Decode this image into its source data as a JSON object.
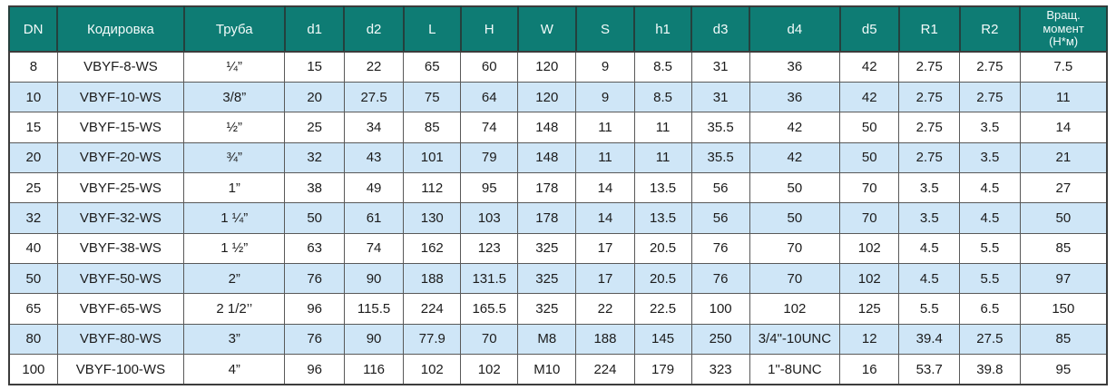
{
  "colors": {
    "header_bg": "#0E7C74",
    "header_text": "#F3FBFA",
    "header_divider": "#24403D",
    "outer_border": "#3C3C3C",
    "grid_line": "#595959",
    "row_bg": "#FFFFFF",
    "row_alt_bg": "#CFE6F7",
    "body_text": "#1C1C1C"
  },
  "table": {
    "columns": [
      {
        "key": "dn",
        "label": "DN",
        "width": 4.4
      },
      {
        "key": "kodirovka",
        "label": "Кодировка",
        "width": 11.5
      },
      {
        "key": "truba",
        "label": "Труба",
        "width": 9.2
      },
      {
        "key": "d1",
        "label": "d1",
        "width": 5.4
      },
      {
        "key": "d2",
        "label": "d2",
        "width": 5.4
      },
      {
        "key": "L",
        "label": "L",
        "width": 5.2
      },
      {
        "key": "H",
        "label": "H",
        "width": 5.2
      },
      {
        "key": "W",
        "label": "W",
        "width": 5.3
      },
      {
        "key": "S",
        "label": "S",
        "width": 5.3
      },
      {
        "key": "h1",
        "label": "h1",
        "width": 5.2
      },
      {
        "key": "d3",
        "label": "d3",
        "width": 5.3
      },
      {
        "key": "d4",
        "label": "d4",
        "width": 8.2
      },
      {
        "key": "d5",
        "label": "d5",
        "width": 5.4
      },
      {
        "key": "R1",
        "label": "R1",
        "width": 5.5
      },
      {
        "key": "R2",
        "label": "R2",
        "width": 5.5
      },
      {
        "key": "torque",
        "label": "Вращ.\nмомент\n(Н*м)",
        "width": 7.9
      }
    ],
    "rows": [
      [
        "8",
        "VBYF-8-WS",
        "¼”",
        "15",
        "22",
        "65",
        "60",
        "120",
        "9",
        "8.5",
        "31",
        "36",
        "42",
        "2.75",
        "2.75",
        "7.5"
      ],
      [
        "10",
        "VBYF-10-WS",
        "3/8”",
        "20",
        "27.5",
        "75",
        "64",
        "120",
        "9",
        "8.5",
        "31",
        "36",
        "42",
        "2.75",
        "2.75",
        "11"
      ],
      [
        "15",
        "VBYF-15-WS",
        "½”",
        "25",
        "34",
        "85",
        "74",
        "148",
        "11",
        "11",
        "35.5",
        "42",
        "50",
        "2.75",
        "3.5",
        "14"
      ],
      [
        "20",
        "VBYF-20-WS",
        "¾”",
        "32",
        "43",
        "101",
        "79",
        "148",
        "11",
        "11",
        "35.5",
        "42",
        "50",
        "2.75",
        "3.5",
        "21"
      ],
      [
        "25",
        "VBYF-25-WS",
        "1”",
        "38",
        "49",
        "112",
        "95",
        "178",
        "14",
        "13.5",
        "56",
        "50",
        "70",
        "3.5",
        "4.5",
        "27"
      ],
      [
        "32",
        "VBYF-32-WS",
        "1 ¼”",
        "50",
        "61",
        "130",
        "103",
        "178",
        "14",
        "13.5",
        "56",
        "50",
        "70",
        "3.5",
        "4.5",
        "50"
      ],
      [
        "40",
        "VBYF-38-WS",
        "1 ½”",
        "63",
        "74",
        "162",
        "123",
        "325",
        "17",
        "20.5",
        "76",
        "70",
        "102",
        "4.5",
        "5.5",
        "85"
      ],
      [
        "50",
        "VBYF-50-WS",
        "2”",
        "76",
        "90",
        "188",
        "131.5",
        "325",
        "17",
        "20.5",
        "76",
        "70",
        "102",
        "4.5",
        "5.5",
        "97"
      ],
      [
        "65",
        "VBYF-65-WS",
        "2 1/2’’",
        "96",
        "115.5",
        "224",
        "165.5",
        "325",
        "22",
        "22.5",
        "100",
        "102",
        "125",
        "5.5",
        "6.5",
        "150"
      ],
      [
        "80",
        "VBYF-80-WS",
        "3”",
        "76",
        "90",
        "77.9",
        "70",
        "M8",
        "188",
        "145",
        "250",
        "3/4\"-10UNC",
        "12",
        "39.4",
        "27.5",
        "85"
      ],
      [
        "100",
        "VBYF-100-WS",
        "4”",
        "96",
        "116",
        "102",
        "102",
        "M10",
        "224",
        "179",
        "323",
        "1\"-8UNC",
        "16",
        "53.7",
        "39.8",
        "95"
      ]
    ]
  }
}
